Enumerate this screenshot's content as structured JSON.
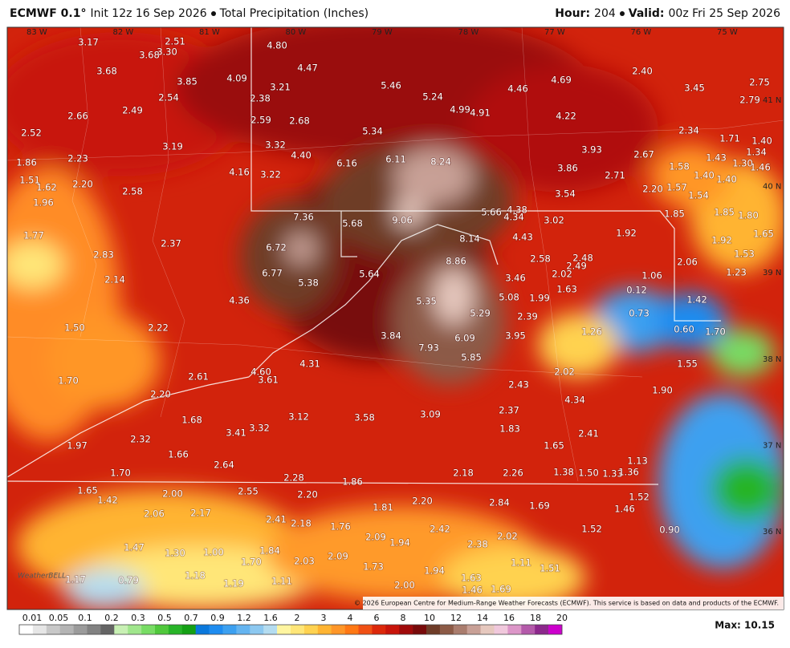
{
  "header": {
    "model": "ECMWF 0.1°",
    "init": "Init 12z 16 Sep 2026",
    "product": "Total Precipitation (Inches)",
    "hour_label": "Hour:",
    "hour": "204",
    "valid_label": "Valid:",
    "valid": "00z Fri 25 Sep 2026"
  },
  "map": {
    "longitude_labels": [
      "83 W",
      "82 W",
      "81 W",
      "80 W",
      "79 W",
      "78 W",
      "77 W",
      "76 W",
      "75 W"
    ],
    "latitude_labels": [
      "41 N",
      "40 N",
      "39 N",
      "38 N",
      "37 N",
      "36 N"
    ],
    "value_labels": [
      "4.80",
      "4.47",
      "3.17",
      "2.51",
      "3.68",
      "3.30",
      "3.68",
      "3.85",
      "4.09",
      "3.21",
      "2.38",
      "5.46",
      "5.24",
      "4.99",
      "4.91",
      "4.46",
      "4.69",
      "2.40",
      "3.45",
      "2.75",
      "2.79",
      "2.66",
      "2.49",
      "2.54",
      "2.59",
      "2.68",
      "5.34",
      "4.22",
      "2.34",
      "2.52",
      "3.19",
      "3.32",
      "4.40",
      "6.16",
      "6.11",
      "8.24",
      "3.93",
      "2.67",
      "1.71",
      "1.40",
      "1.34",
      "1.86",
      "2.23",
      "4.16",
      "3.22",
      "3.86",
      "2.71",
      "1.58",
      "1.43",
      "1.30",
      "1.46",
      "1.51",
      "1.62",
      "2.20",
      "2.58",
      "3.54",
      "2.20",
      "1.57",
      "1.40",
      "1.54",
      "1.40",
      "1.96",
      "7.36",
      "5.68",
      "9.06",
      "5.66",
      "4.38",
      "4.34",
      "3.02",
      "1.85",
      "1.85",
      "1.80",
      "1.77",
      "2.37",
      "6.72",
      "8.14",
      "4.43",
      "1.92",
      "1.92",
      "1.65",
      "2.83",
      "8.86",
      "2.58",
      "2.48",
      "2.06",
      "1.53",
      "6.77",
      "5.64",
      "2.02",
      "1.63",
      "2.49",
      "3.46",
      "1.06",
      "1.23",
      "2.14",
      "5.38",
      "5.08",
      "1.99",
      "0.12",
      "4.36",
      "5.35",
      "1.42",
      "0.73",
      "5.29",
      "2.39",
      "1.50",
      "2.22",
      "3.84",
      "6.09",
      "3.95",
      "0.60",
      "1.70",
      "1.26",
      "7.93",
      "5.85",
      "4.31",
      "1.55",
      "4.60",
      "3.61",
      "2.02",
      "1.70",
      "2.61",
      "2.43",
      "1.90",
      "2.20",
      "4.34",
      "3.12",
      "3.58",
      "3.09",
      "2.37",
      "1.68",
      "3.32",
      "3.41",
      "1.83",
      "2.41",
      "2.32",
      "1.97",
      "1.65",
      "1.66",
      "1.13",
      "2.64",
      "1.70",
      "1.38",
      "1.50",
      "1.33",
      "1.36",
      "2.28",
      "2.18",
      "2.26",
      "1.86",
      "1.65",
      "2.00",
      "2.55",
      "2.20",
      "1.42",
      "1.52",
      "1.81",
      "2.20",
      "2.84",
      "1.69",
      "2.06",
      "2.17",
      "1.46",
      "2.41",
      "2.18",
      "1.76",
      "2.42",
      "1.52",
      "0.90",
      "2.09",
      "1.94",
      "2.02",
      "2.38",
      "1.47",
      "1.30",
      "1.00",
      "1.84",
      "1.70",
      "2.03",
      "2.09",
      "1.73",
      "1.11",
      "1.51",
      "1.17",
      "0.79",
      "1.18",
      "1.19",
      "1.11",
      "2.00",
      "1.94",
      "1.63",
      "1.46",
      "1.69"
    ],
    "logo": "WeatherBELL",
    "copyright": "© 2026 European Centre for Medium-Range Weather Forecasts (ECMWF). This service is based on data and products of the ECMWF."
  },
  "scale": {
    "labels": [
      "0.01",
      "0.05",
      "0.1",
      "0.2",
      "0.3",
      "0.5",
      "0.7",
      "0.9",
      "1.2",
      "1.6",
      "2",
      "3",
      "4",
      "6",
      "8",
      "10",
      "12",
      "14",
      "16",
      "18",
      "20"
    ],
    "colors": [
      "#ffffff",
      "#e6e6e6",
      "#c8c8c8",
      "#b4b4b4",
      "#9b9b9b",
      "#828282",
      "#646464",
      "#c8f0b4",
      "#a0e68c",
      "#78dc64",
      "#50c83c",
      "#28b428",
      "#14a014",
      "#0a78dc",
      "#1e8cf0",
      "#3ca0f0",
      "#64b4f0",
      "#8cc8f0",
      "#b4dcf0",
      "#fff5a0",
      "#ffe678",
      "#ffd250",
      "#ffb432",
      "#ff9628",
      "#ff7814",
      "#f05014",
      "#dc280a",
      "#c8140a",
      "#a00a0a",
      "#780a0a",
      "#6e3c28",
      "#8c5a46",
      "#aa7d6e",
      "#c8a096",
      "#e6c8be",
      "#f0c8dc",
      "#dc96c8",
      "#b45aaa",
      "#8c288c",
      "#cc00cc"
    ]
  },
  "max": "Max: 10.15"
}
